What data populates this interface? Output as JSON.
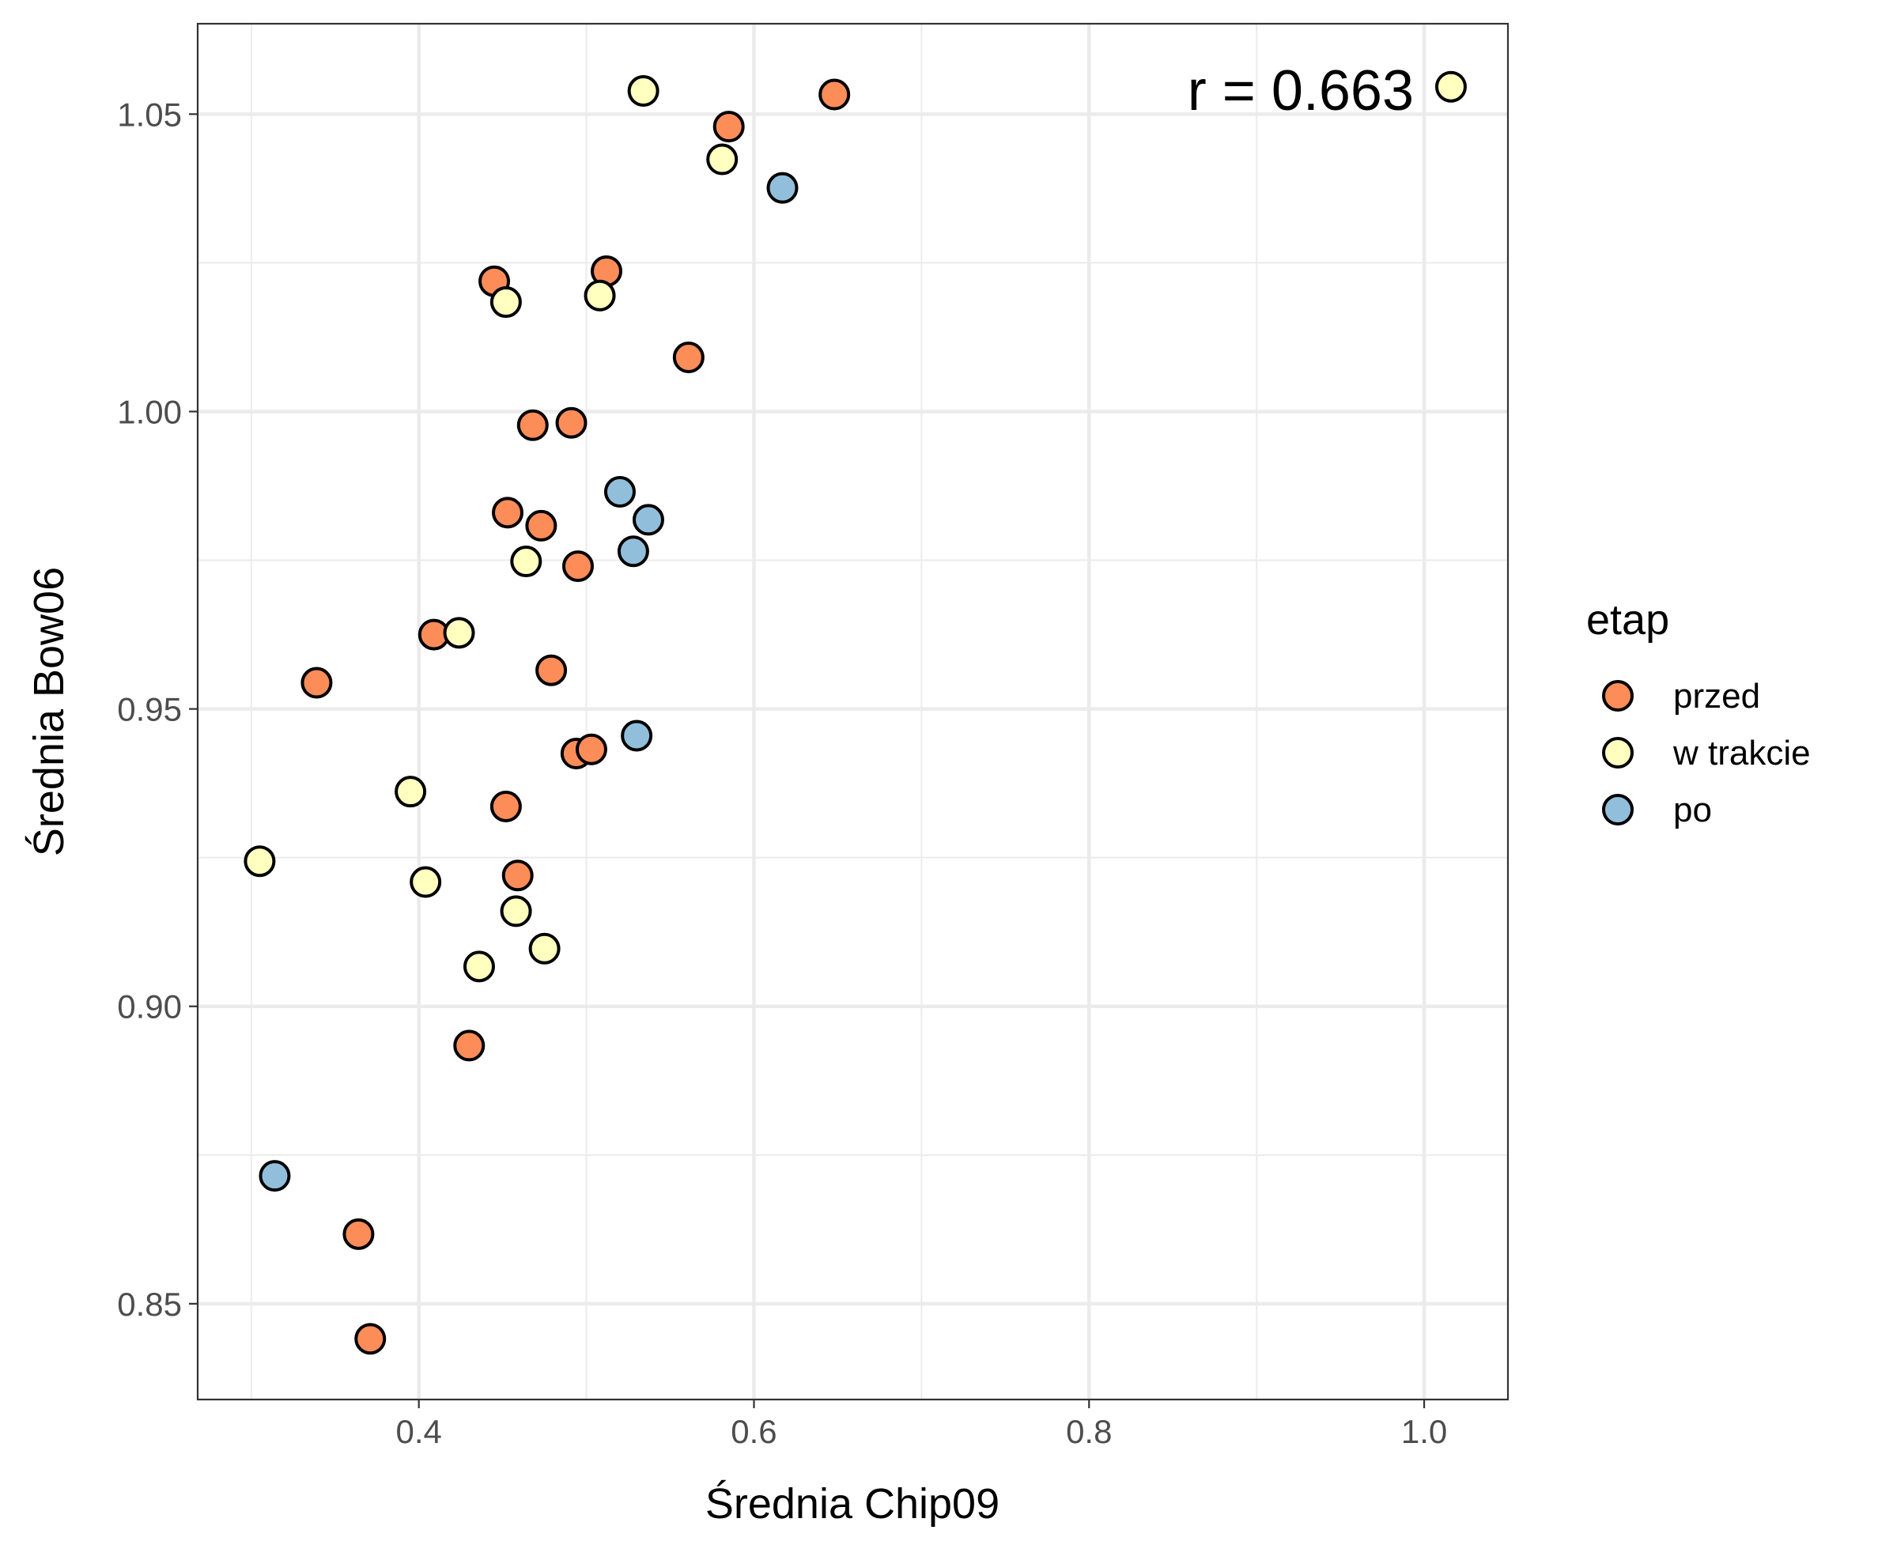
{
  "chart_data": {
    "type": "scatter",
    "xlabel": "Średnia Chip09",
    "ylabel": "Średnia Bow06",
    "xlim": [
      0.268,
      1.05
    ],
    "ylim": [
      0.8339,
      1.0652
    ],
    "x_ticks": [
      {
        "value": 0.4,
        "label": "0.4"
      },
      {
        "value": 0.6,
        "label": "0.6"
      },
      {
        "value": 0.8,
        "label": "0.8"
      },
      {
        "value": 1.0,
        "label": "1.0"
      }
    ],
    "y_ticks": [
      {
        "value": 0.85,
        "label": "0.85"
      },
      {
        "value": 0.9,
        "label": "0.90"
      },
      {
        "value": 0.95,
        "label": "0.95"
      },
      {
        "value": 1.0,
        "label": "1.00"
      },
      {
        "value": 1.05,
        "label": "1.05"
      }
    ],
    "x_minor": [
      0.3,
      0.5,
      0.7,
      0.9
    ],
    "y_minor": [
      0.875,
      0.925,
      0.975,
      1.025
    ],
    "grid": true,
    "legend": {
      "title": "etap",
      "position": "right"
    },
    "annotation": "r = 0.663",
    "series": [
      {
        "name": "przed",
        "color": "#FC8D59",
        "points": [
          [
            0.648,
            1.0533
          ],
          [
            0.585,
            1.0479
          ],
          [
            0.512,
            1.0236
          ],
          [
            0.445,
            1.0219
          ],
          [
            0.561,
            1.0091
          ],
          [
            0.468,
            0.9977
          ],
          [
            0.491,
            0.9981
          ],
          [
            0.453,
            0.983
          ],
          [
            0.473,
            0.9808
          ],
          [
            0.495,
            0.974
          ],
          [
            0.409,
            0.9625
          ],
          [
            0.339,
            0.9544
          ],
          [
            0.479,
            0.9565
          ],
          [
            0.494,
            0.9425
          ],
          [
            0.503,
            0.9432
          ],
          [
            0.452,
            0.9336
          ],
          [
            0.459,
            0.922
          ],
          [
            0.43,
            0.8934
          ],
          [
            0.364,
            0.8617
          ],
          [
            0.371,
            0.8441
          ]
        ]
      },
      {
        "name": "w trakcie",
        "color": "#FFFFBF",
        "points": [
          [
            0.534,
            1.0539
          ],
          [
            1.016,
            1.0546
          ],
          [
            0.581,
            1.0424
          ],
          [
            0.452,
            1.0184
          ],
          [
            0.508,
            1.0195
          ],
          [
            0.464,
            0.9748
          ],
          [
            0.424,
            0.9628
          ],
          [
            0.395,
            0.9361
          ],
          [
            0.305,
            0.9244
          ],
          [
            0.404,
            0.9209
          ],
          [
            0.458,
            0.916
          ],
          [
            0.475,
            0.9097
          ],
          [
            0.436,
            0.9067
          ]
        ]
      },
      {
        "name": "po",
        "color": "#91BFDB",
        "points": [
          [
            0.617,
            1.0376
          ],
          [
            0.52,
            0.9865
          ],
          [
            0.537,
            0.9818
          ],
          [
            0.528,
            0.9765
          ],
          [
            0.53,
            0.9455
          ],
          [
            0.314,
            0.8715
          ]
        ]
      }
    ]
  }
}
